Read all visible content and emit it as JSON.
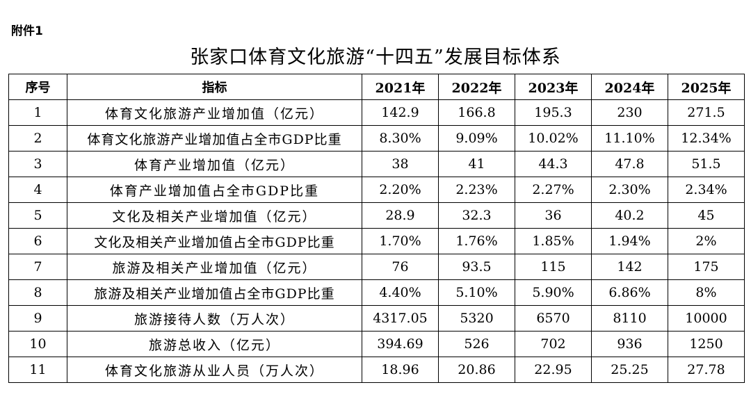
{
  "attachment_label": "附件1",
  "title": "张家口体育文化旅游“十四五”发展目标体系",
  "table": {
    "headers": [
      "序号",
      "指标",
      "2021年",
      "2022年",
      "2023年",
      "2024年",
      "2025年"
    ],
    "rows": [
      [
        "1",
        "体育文化旅游产业增加值（亿元）",
        "142.9",
        "166.8",
        "195.3",
        "230",
        "271.5"
      ],
      [
        "2",
        "体育文化旅游产业增加值占全市GDP比重",
        "8.30%",
        "9.09%",
        "10.02%",
        "11.10%",
        "12.34%"
      ],
      [
        "3",
        "体育产业增加值（亿元）",
        "38",
        "41",
        "44.3",
        "47.8",
        "51.5"
      ],
      [
        "4",
        "体育产业增加值占全市GDP比重",
        "2.20%",
        "2.23%",
        "2.27%",
        "2.30%",
        "2.34%"
      ],
      [
        "5",
        "文化及相关产业增加值（亿元）",
        "28.9",
        "32.3",
        "36",
        "40.2",
        "45"
      ],
      [
        "6",
        "文化及相关产业增加值占全市GDP比重",
        "1.70%",
        "1.76%",
        "1.85%",
        "1.94%",
        "2%"
      ],
      [
        "7",
        "旅游及相关产业增加值（亿元）",
        "76",
        "93.5",
        "115",
        "142",
        "175"
      ],
      [
        "8",
        "旅游及相关产业增加值占全市GDP比重",
        "4.40%",
        "5.10%",
        "5.90%",
        "6.86%",
        "8%"
      ],
      [
        "9",
        "旅游接待人数（万人次）",
        "4317.05",
        "5320",
        "6570",
        "8110",
        "10000"
      ],
      [
        "10",
        "旅游总收入（亿元）",
        "394.69",
        "526",
        "702",
        "936",
        "1250"
      ],
      [
        "11",
        "体育文化旅游从业人员（万人次）",
        "18.96",
        "20.86",
        "22.95",
        "25.25",
        "27.78"
      ]
    ]
  }
}
